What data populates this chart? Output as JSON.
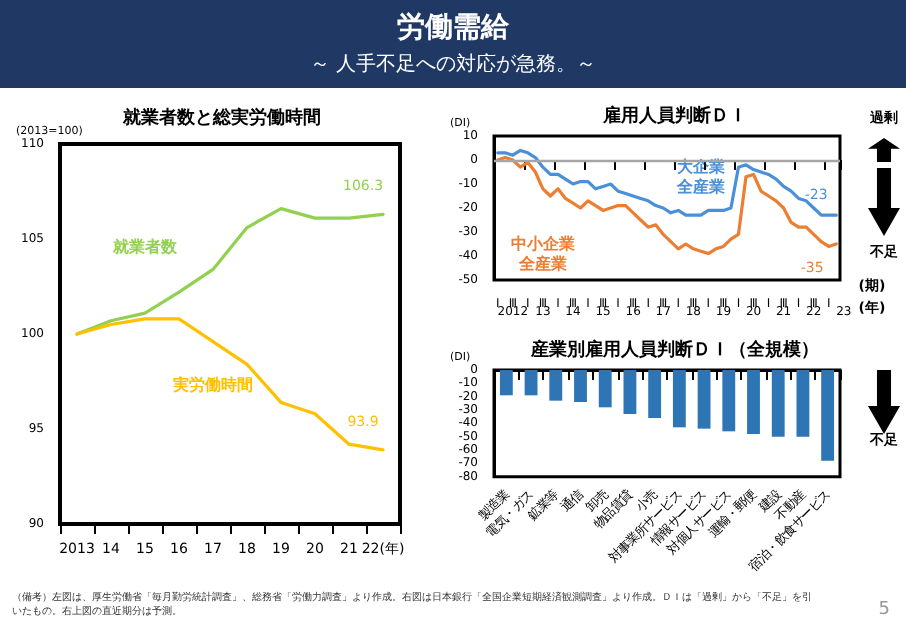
{
  "chart_data": [
    {
      "type": "other",
      "title": "労働需給",
      "subtitle": "～ 人手不足への対応が急務。～",
      "annotations": [
        "（備考）左図は、厚生労働省「毎月勤労統計調査」、総務省「労働力調査」より作成。右図は日本銀行「全国企業短期経済観測調査」より作成。ＤＩは「過剰」から「不足」を引いたもの。右上図の直近期分は予測。",
        "5"
      ]
    },
    {
      "type": "line",
      "title": "就業者数と総実労働時間",
      "ylabel": "(2013=100)",
      "categories": [
        "2013",
        "14",
        "15",
        "16",
        "17",
        "18",
        "19",
        "20",
        "21",
        "22(年)"
      ],
      "series": [
        {
          "name": "就業者数",
          "color": "#92d050",
          "values": [
            100,
            100.7,
            101.1,
            102.2,
            103.4,
            105.6,
            106.6,
            106.1,
            106.1,
            106.3
          ]
        },
        {
          "name": "実労働時間",
          "color": "#ffc000",
          "values": [
            100,
            100.5,
            100.8,
            100.8,
            99.6,
            98.4,
            96.4,
            95.8,
            94.2,
            93.9
          ]
        }
      ],
      "ylim": [
        90,
        110
      ],
      "yticks": [
        90,
        95,
        100,
        105,
        110
      ],
      "annotations": [
        {
          "text": "106.3",
          "x": "22(年)",
          "y": 106.3
        },
        {
          "text": "93.9",
          "x": "22(年)",
          "y": 93.9
        }
      ]
    },
    {
      "type": "line",
      "title": "雇用人員判断ＤＩ",
      "ylabel": "(DI)",
      "categories": [
        "Ⅰ",
        null,
        "Ⅲ",
        null,
        "Ⅰ",
        null,
        "Ⅲ",
        null,
        "Ⅰ",
        null,
        "Ⅲ",
        null,
        "Ⅰ",
        null,
        "Ⅲ",
        null,
        "Ⅰ",
        null,
        "Ⅲ",
        null,
        "Ⅰ",
        null,
        "Ⅲ",
        null,
        "Ⅰ",
        null,
        "Ⅲ",
        null,
        "Ⅰ",
        null,
        "Ⅲ",
        null,
        "Ⅰ",
        null,
        "Ⅲ",
        null,
        "Ⅰ",
        null,
        "Ⅲ",
        null,
        "Ⅰ",
        null,
        "Ⅲ",
        null,
        "Ⅰ",
        null
      ],
      "series": [
        {
          "name": "大企業全産業",
          "color": "#4a90d9",
          "values": [
            3,
            3,
            2,
            4,
            3,
            1,
            -3,
            -6,
            -6,
            -8,
            -10,
            -9,
            -9,
            -12,
            -11,
            -10,
            -13,
            -14,
            -15,
            -16,
            -17,
            -19,
            -20,
            -22,
            -21,
            -23,
            -23,
            -23,
            -21,
            -21,
            -21,
            -20,
            -3,
            -2,
            -4,
            -5,
            -6,
            -8,
            -11,
            -13,
            -16,
            -17,
            -20,
            -23,
            -23,
            -23
          ]
        },
        {
          "name": "中小企業全産業",
          "color": "#ed7d31",
          "values": [
            0,
            1,
            0,
            -3,
            -1,
            -5,
            -12,
            -15,
            -12,
            -16,
            -18,
            -20,
            -17,
            -19,
            -21,
            -20,
            -19,
            -19,
            -22,
            -25,
            -28,
            -27,
            -31,
            -34,
            -37,
            -35,
            -37,
            -38,
            -39,
            -37,
            -36,
            -33,
            -31,
            -7,
            -6,
            -13,
            -15,
            -17,
            -20,
            -26,
            -28,
            -28,
            -31,
            -34,
            -36,
            -35
          ]
        }
      ],
      "ylim": [
        -50,
        10
      ],
      "yticks": [
        -50,
        -40,
        -30,
        -20,
        -10,
        0,
        10
      ],
      "ref_lines": [
        {
          "axis": "y",
          "value": 0,
          "color": "#a6a6a6"
        }
      ],
      "annotations": [
        {
          "text": "-23",
          "y": -23
        },
        {
          "text": "-35",
          "y": -35
        },
        "(期)",
        "(年)",
        "過剰",
        "不足",
        "2012",
        "13",
        "14",
        "15",
        "16",
        "17",
        "18",
        "19",
        "20",
        "21",
        "22",
        "23"
      ]
    },
    {
      "type": "bar",
      "title": "産業別雇用人員判断ＤＩ（全規模）",
      "ylabel": "(DI)",
      "color": "#2e75b6",
      "categories": [
        "製造業",
        "電気・ガス",
        "鉱業等",
        "通信",
        "卸売",
        "物品賃貸",
        "小売",
        "対事業所サービス",
        "情報サービス",
        "対個人サービス",
        "運輸・郵便",
        "建設",
        "不動産",
        "宿泊・飲食サービス"
      ],
      "values": [
        -19,
        -19,
        -23,
        -24,
        -28,
        -33,
        -36,
        -43,
        -44,
        -46,
        -48,
        -50,
        -50,
        -68
      ],
      "ylim": [
        -80,
        0
      ],
      "yticks": [
        -80,
        -70,
        -60,
        -50,
        -40,
        -30,
        -20,
        -10,
        0
      ],
      "annotations": [
        "不足"
      ]
    }
  ]
}
